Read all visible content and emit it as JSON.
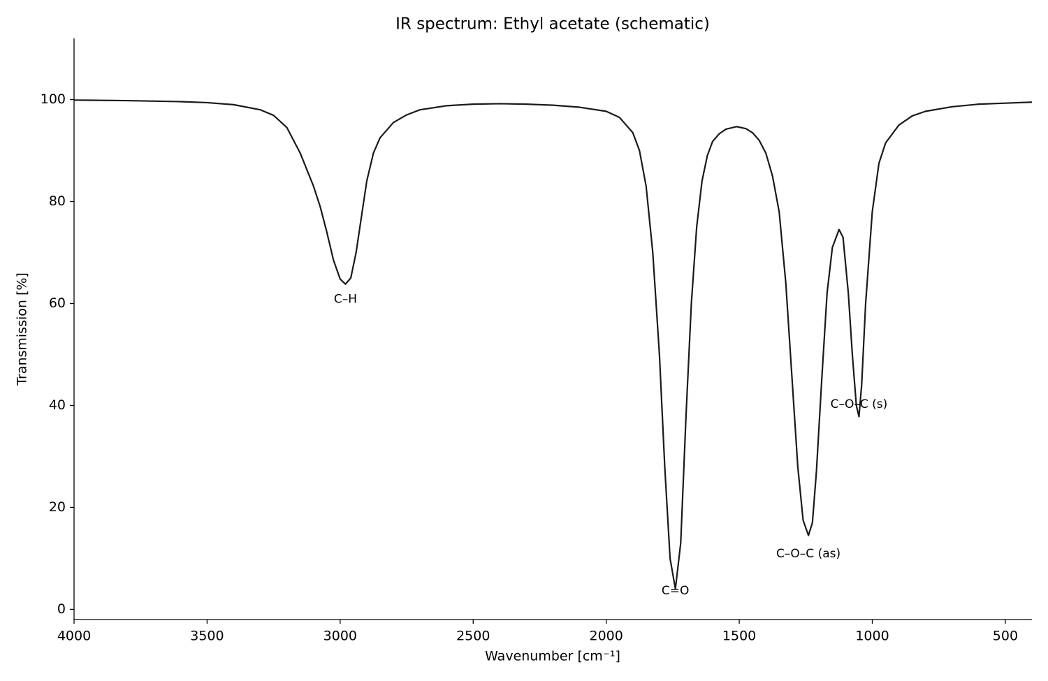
{
  "chart_data": {
    "type": "line",
    "title": "IR spectrum: Ethyl acetate (schematic)",
    "x_label": "Wavenumber [cm⁻¹]",
    "y_label": "Transmission [%]",
    "color": "#1a1a1a",
    "grid": false,
    "xlim": [
      4000,
      400
    ],
    "ylim": [
      -2,
      112
    ],
    "xticks": [
      4000,
      3500,
      3000,
      2500,
      2000,
      1500,
      1000,
      500
    ],
    "yticks": [
      0,
      20,
      40,
      60,
      80,
      100
    ],
    "x": [
      4000,
      3800,
      3600,
      3500,
      3400,
      3300,
      3250,
      3200,
      3150,
      3100,
      3075,
      3050,
      3025,
      3000,
      2980,
      2960,
      2940,
      2920,
      2900,
      2875,
      2850,
      2800,
      2750,
      2700,
      2600,
      2500,
      2400,
      2300,
      2200,
      2100,
      2000,
      1950,
      1900,
      1875,
      1850,
      1825,
      1800,
      1780,
      1760,
      1740,
      1720,
      1700,
      1680,
      1660,
      1640,
      1620,
      1600,
      1575,
      1550,
      1510,
      1475,
      1450,
      1425,
      1400,
      1375,
      1350,
      1325,
      1300,
      1280,
      1260,
      1240,
      1225,
      1210,
      1190,
      1170,
      1150,
      1125,
      1110,
      1090,
      1075,
      1060,
      1050,
      1040,
      1025,
      1000,
      975,
      950,
      900,
      850,
      800,
      700,
      600,
      500,
      400
    ],
    "values": [
      99.9,
      99.8,
      99.6,
      99.4,
      99.0,
      98.0,
      96.9,
      94.5,
      89.5,
      83,
      79,
      74,
      68.5,
      64.8,
      63.8,
      65,
      70,
      77,
      84,
      89.5,
      92.5,
      95.5,
      97,
      98,
      98.8,
      99.1,
      99.2,
      99.1,
      98.9,
      98.5,
      97.7,
      96.5,
      93.5,
      90,
      83,
      70,
      50,
      28,
      10,
      4,
      13,
      38,
      60,
      75,
      84,
      89,
      91.8,
      93.3,
      94.2,
      94.7,
      94.3,
      93.5,
      92,
      89.5,
      85,
      78,
      64,
      44,
      28,
      17.5,
      14.5,
      17,
      27,
      45,
      62,
      71,
      74.5,
      73,
      62,
      50,
      40,
      37.8,
      44,
      60,
      78,
      87.5,
      91.5,
      95,
      96.8,
      97.7,
      98.6,
      99.1,
      99.3,
      99.5
    ],
    "annotations": [
      {
        "text": "C–H",
        "x": 2980,
        "y": 60.8
      },
      {
        "text": "C=O",
        "x": 1740,
        "y": 3.6
      },
      {
        "text": "C–O–C (as)",
        "x": 1240,
        "y": 10.9
      },
      {
        "text": "C–O–C (s)",
        "x": 1050,
        "y": 40.2
      }
    ]
  }
}
